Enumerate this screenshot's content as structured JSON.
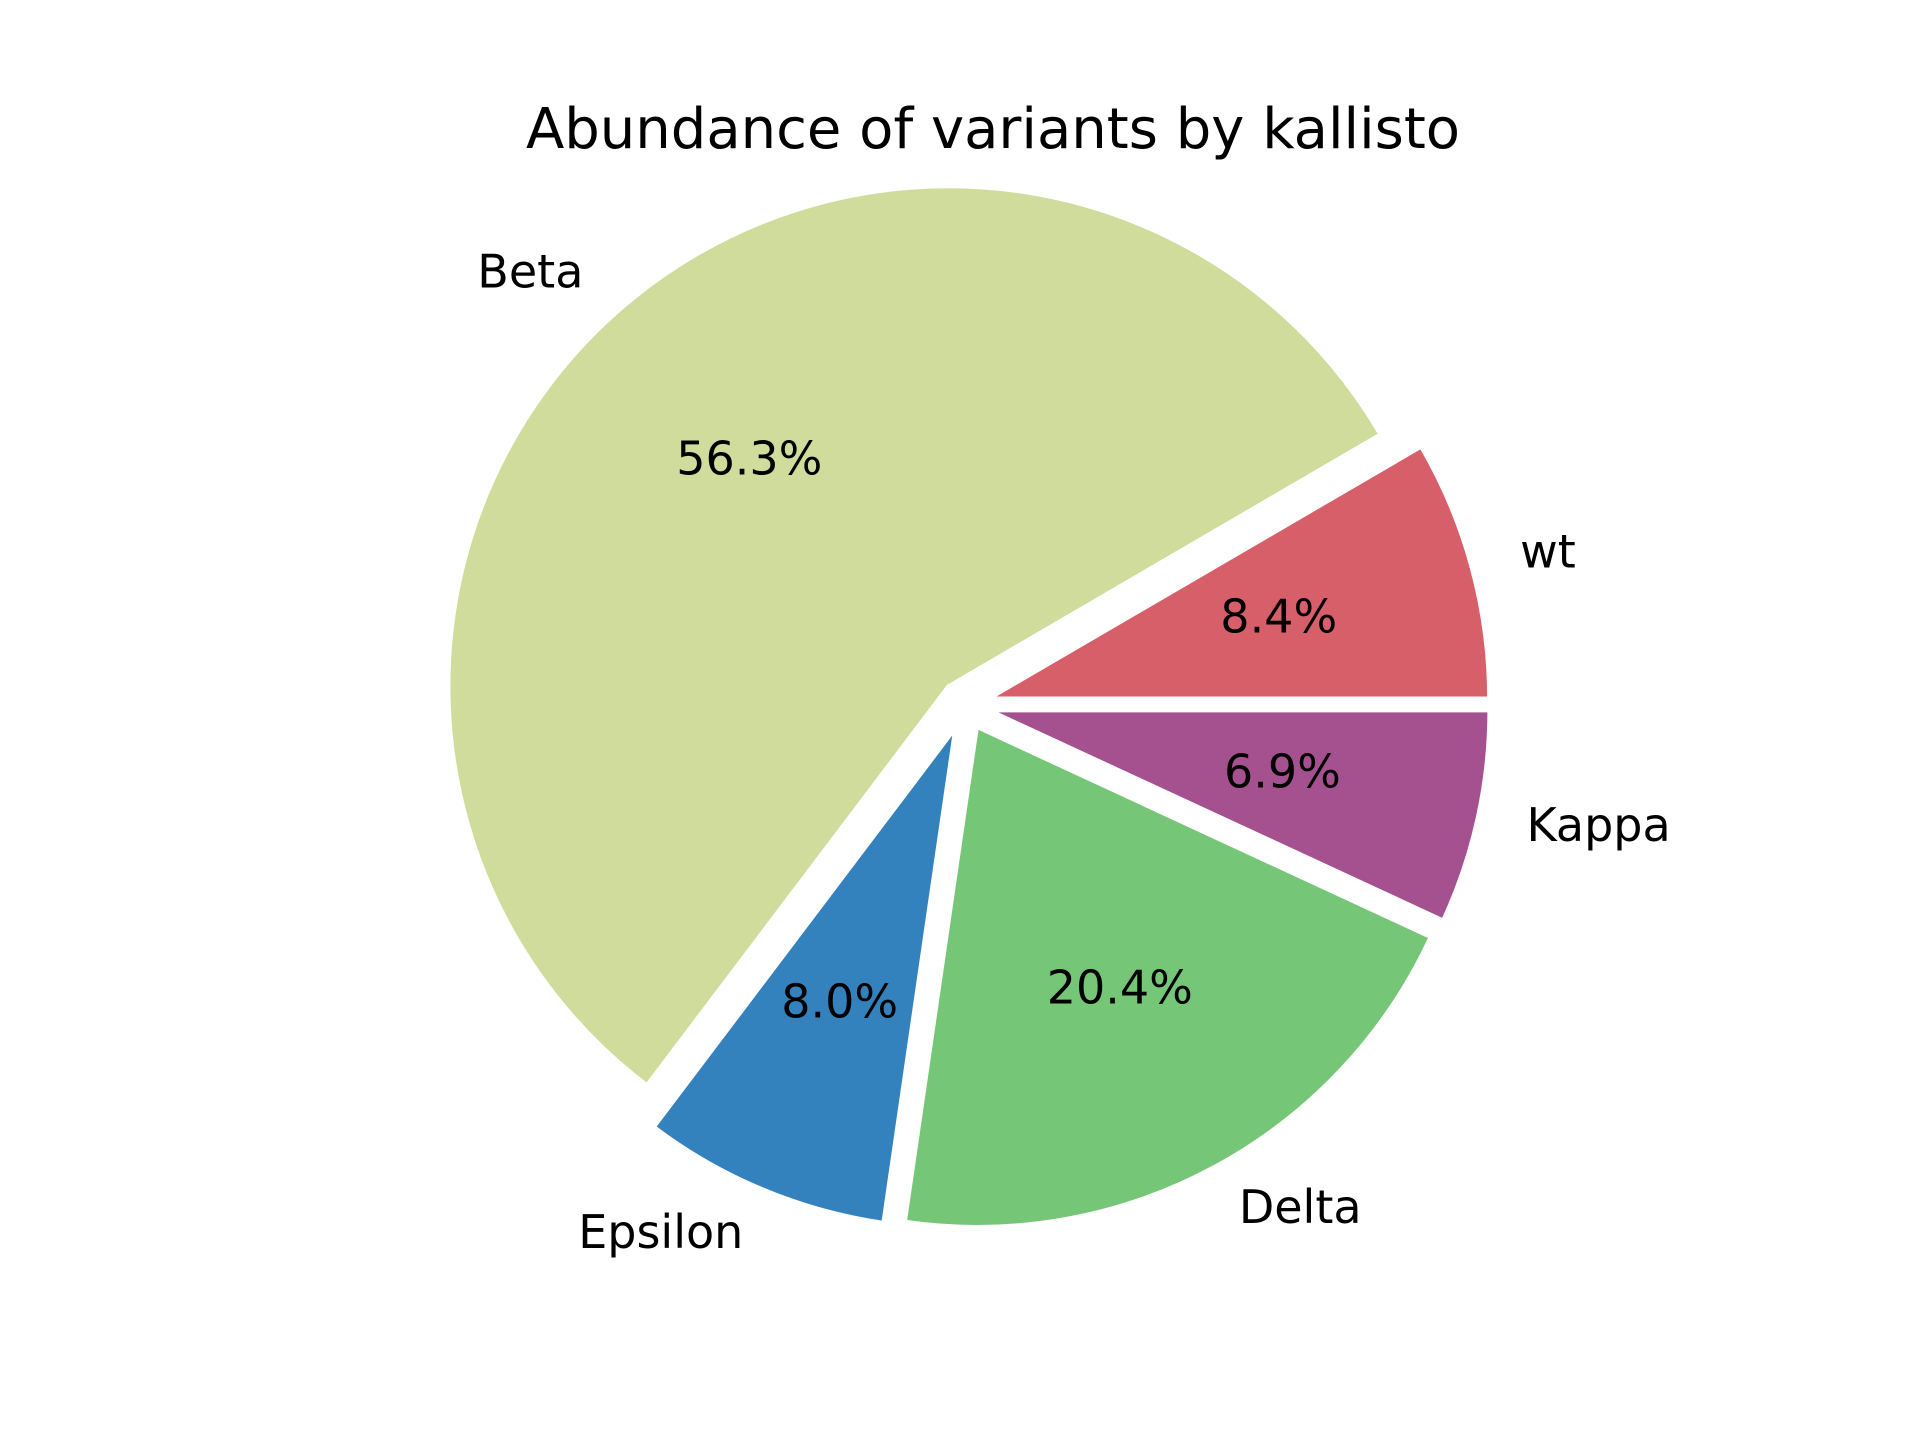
{
  "chart_data": {
    "type": "pie",
    "title": "Abundance of variants by kallisto",
    "start_angle_deg": 0,
    "direction": "counterclockwise",
    "slices": [
      {
        "label": "wt",
        "value": 8.4,
        "pct_text": "8.4%",
        "color": "#d75f69",
        "exploded": true
      },
      {
        "label": "Beta",
        "value": 56.3,
        "pct_text": "56.3%",
        "color": "#d0dc9c",
        "exploded": true
      },
      {
        "label": "Epsilon",
        "value": 8.0,
        "pct_text": "8.0%",
        "color": "#3482bd",
        "exploded": true
      },
      {
        "label": "Delta",
        "value": 20.4,
        "pct_text": "20.4%",
        "color": "#75c677",
        "exploded": true
      },
      {
        "label": "Kappa",
        "value": 6.9,
        "pct_text": "6.9%",
        "color": "#a55190",
        "exploded": true
      }
    ]
  }
}
